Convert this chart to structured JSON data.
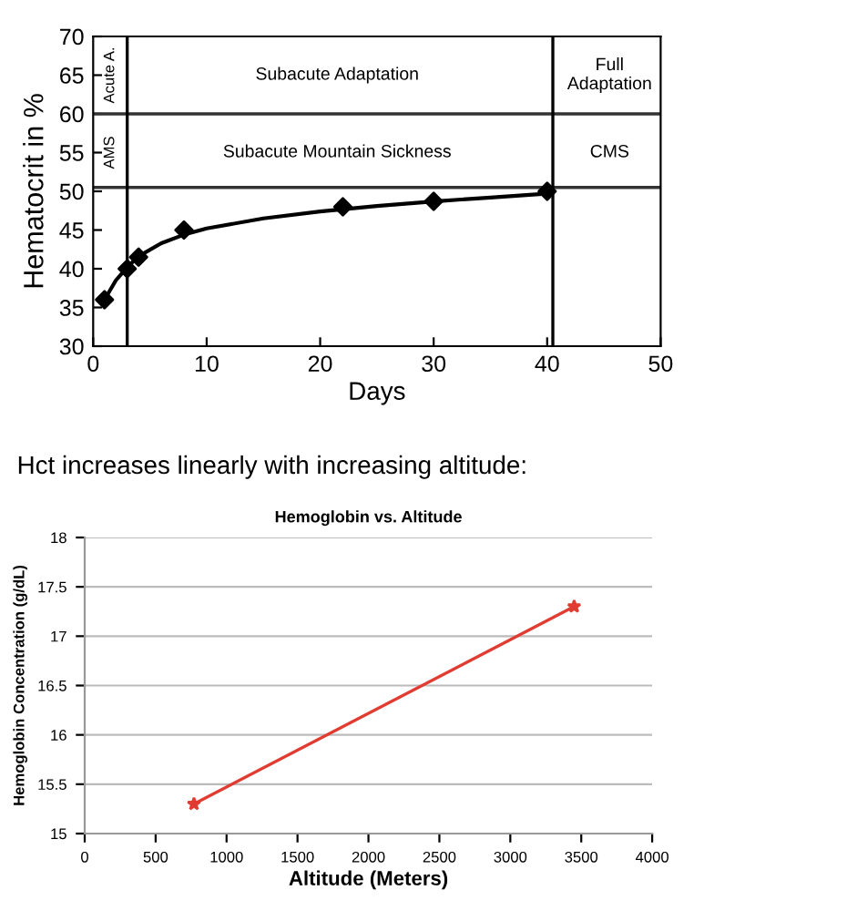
{
  "chart_data": [
    {
      "type": "scatter",
      "xlabel": "Days",
      "ylabel": "Hematocrit in %",
      "series": [
        {
          "color": "#000000",
          "marker": "diamond",
          "x": [
            1,
            3,
            4,
            8,
            22,
            30,
            40
          ],
          "values": [
            36,
            40,
            41.5,
            45,
            48,
            48.7,
            50
          ]
        },
        {
          "type": "line",
          "color": "#000000",
          "marker": "none",
          "x": [
            1,
            2,
            3,
            4,
            6,
            8,
            10,
            15,
            20,
            25,
            30,
            35,
            40
          ],
          "values": [
            36,
            38.5,
            40.2,
            41.6,
            43.3,
            44.4,
            45.2,
            46.5,
            47.4,
            48.1,
            48.7,
            49.2,
            49.7
          ]
        }
      ],
      "xlim": [
        0,
        50
      ],
      "xticks": [
        0,
        10,
        20,
        30,
        40,
        50
      ],
      "ylim": [
        30,
        70
      ],
      "yticks": [
        30,
        35,
        40,
        45,
        50,
        55,
        60,
        65,
        70
      ],
      "grid": false,
      "legend": false,
      "ref_lines": [
        {
          "axis": "y",
          "value": 60,
          "color": "#333333"
        },
        {
          "axis": "y",
          "value": 50.5,
          "color": "#333333"
        },
        {
          "axis": "x",
          "value": 3,
          "color": "#000000"
        },
        {
          "axis": "x",
          "value": 40.5,
          "color": "#000000"
        }
      ],
      "annotations": [
        "Subacute Adaptation",
        "Full\nAdaptation",
        "Subacute Mountain Sickness",
        "CMS",
        "Acute A.",
        "AMS"
      ]
    },
    {
      "type": "line",
      "title": "Hemoglobin vs. Altitude",
      "subtitle": "Hct increases linearly with increasing altitude:",
      "xlabel": "Altitude (Meters)",
      "ylabel": "Hemoglobin Concentration (g/dL)",
      "series": [
        {
          "color": "#e03c31",
          "marker": "star",
          "x": [
            770,
            3450
          ],
          "values": [
            15.3,
            17.3
          ]
        }
      ],
      "xlim": [
        0,
        4000
      ],
      "xticks": [
        0,
        500,
        1000,
        1500,
        2000,
        2500,
        3000,
        3500,
        4000
      ],
      "ylim": [
        15,
        18
      ],
      "yticks": [
        15,
        15.5,
        16,
        16.5,
        17,
        17.5,
        18
      ],
      "grid": "y",
      "legend": false
    }
  ]
}
